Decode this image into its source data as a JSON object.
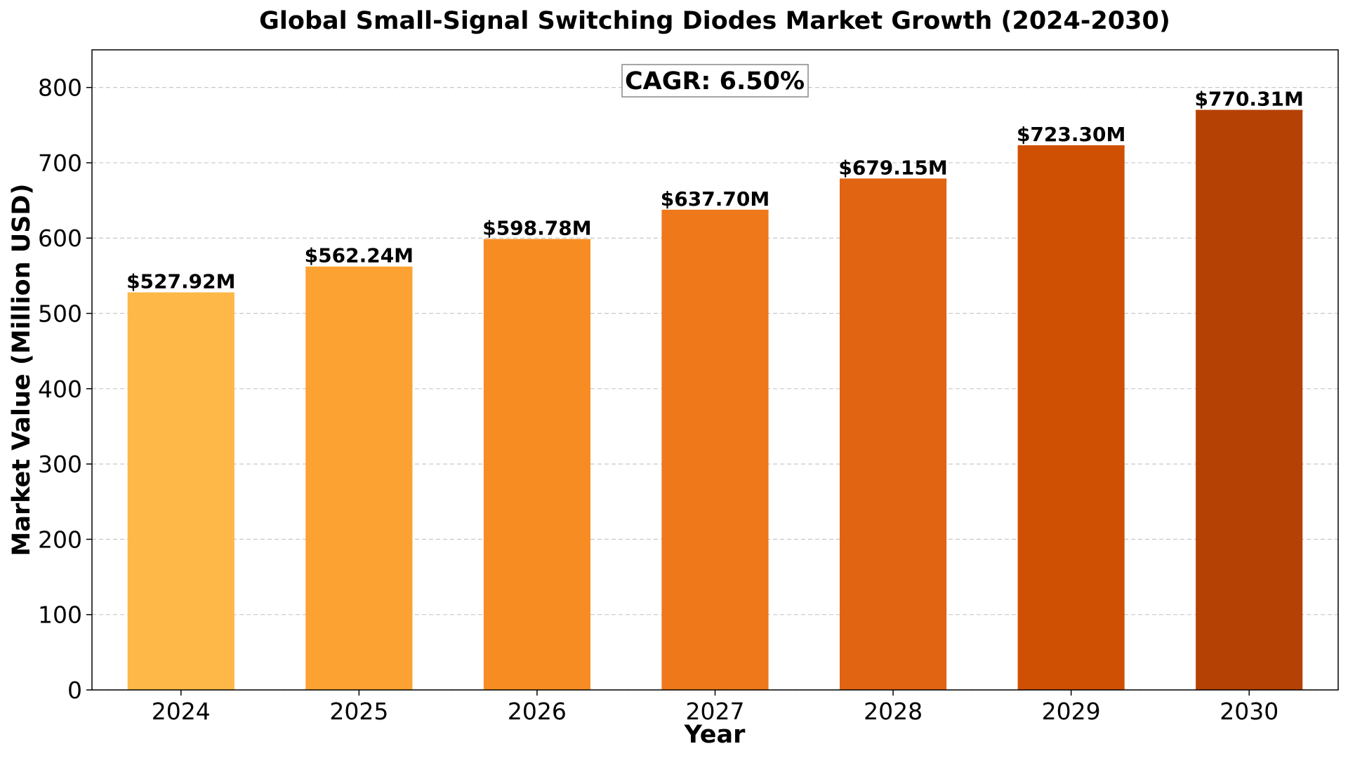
{
  "chart_data": {
    "type": "bar",
    "title": "Global Small-Signal Switching Diodes Market Growth (2024-2030)",
    "xlabel": "Year",
    "ylabel": "Market Value (Million USD)",
    "categories": [
      "2024",
      "2025",
      "2026",
      "2027",
      "2028",
      "2029",
      "2030"
    ],
    "values": [
      527.92,
      562.24,
      598.78,
      637.7,
      679.15,
      723.3,
      770.31
    ],
    "data_labels": [
      "$527.92M",
      "$562.24M",
      "$598.78M",
      "$637.70M",
      "$679.15M",
      "$723.30M",
      "$770.31M"
    ],
    "bar_colors": [
      "#FDB847",
      "#FCA232",
      "#F78D22",
      "#EE781A",
      "#E06412",
      "#CF5003",
      "#B54204"
    ],
    "ylim": [
      0,
      850
    ],
    "yticks": [
      0,
      100,
      200,
      300,
      400,
      500,
      600,
      700,
      800
    ],
    "grid": true,
    "annotation": "CAGR: 6.50%"
  }
}
